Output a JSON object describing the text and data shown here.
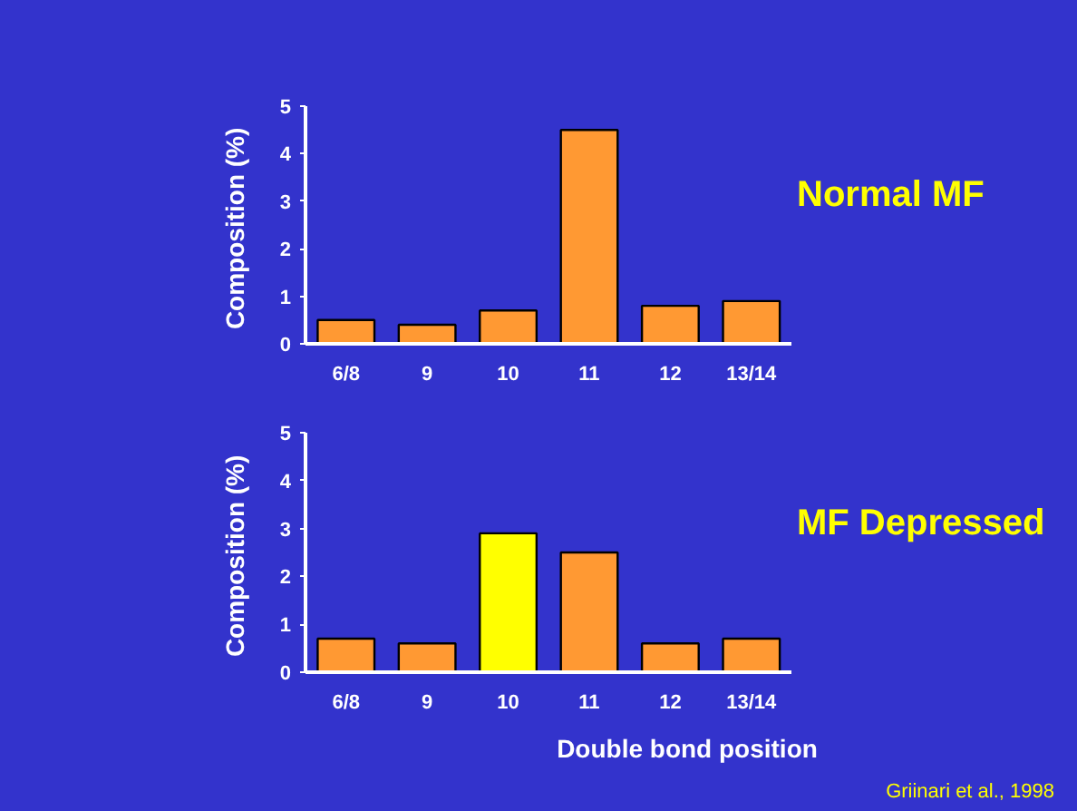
{
  "chart_data": [
    {
      "type": "bar",
      "ylabel": "Composition  (%)",
      "categories": [
        "6/8",
        "9",
        "10",
        "11",
        "12",
        "13/14"
      ],
      "values": [
        0.5,
        0.4,
        0.7,
        4.5,
        0.8,
        0.9
      ],
      "colors": [
        "#ff9933",
        "#ff9933",
        "#ff9933",
        "#ff9933",
        "#ff9933",
        "#ff9933"
      ],
      "ylim": [
        0,
        5
      ],
      "yticks": [
        0,
        1,
        2,
        3,
        4,
        5
      ],
      "grid": false,
      "annotations": [
        "Normal MF"
      ]
    },
    {
      "type": "bar",
      "ylabel": "Composition  (%)",
      "xlabel": "Double bond position",
      "categories": [
        "6/8",
        "9",
        "10",
        "11",
        "12",
        "13/14"
      ],
      "values": [
        0.7,
        0.6,
        2.9,
        2.5,
        0.6,
        0.7
      ],
      "colors": [
        "#ff9933",
        "#ff9933",
        "#ffff00",
        "#ff9933",
        "#ff9933",
        "#ff9933"
      ],
      "ylim": [
        0,
        5
      ],
      "yticks": [
        0,
        1,
        2,
        3,
        4,
        5
      ],
      "grid": false,
      "annotations": [
        "MF Depressed",
        "Griinari et al., 1998"
      ]
    }
  ]
}
